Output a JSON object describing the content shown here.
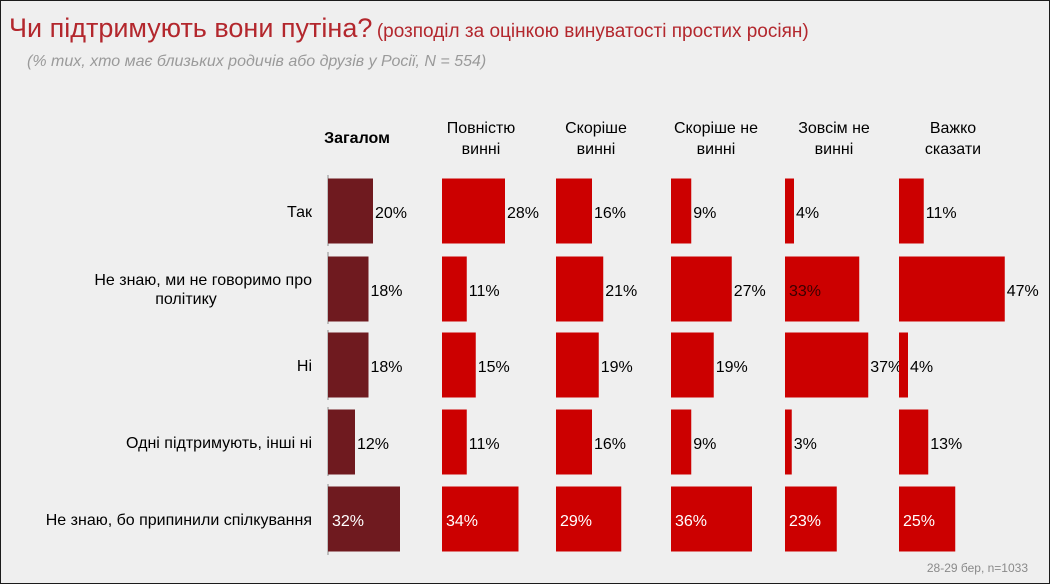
{
  "title": {
    "main": "Чи підтримують вони путіна?",
    "sub": "(розподіл за оцінкою винуватості простих росіян)"
  },
  "subtitle": "(% тих, хто має близьких родичів або друзів у Росії, N = 554)",
  "footnote": "28-29 бер, n=1033",
  "colors": {
    "overall": "#6f1a1f",
    "group": "#cc0000",
    "text": "#000000",
    "title": "#b3272d"
  },
  "chart_data": {
    "type": "bar",
    "orientation": "horizontal",
    "title": "Чи підтримують вони путіна?",
    "categories": [
      [
        "Так"
      ],
      [
        "Не знаю, ми не говоримо про",
        "політику"
      ],
      [
        "Ні"
      ],
      [
        "Одні підтримують, інші ні"
      ],
      [
        "Не знаю, бо припинили спілкування"
      ]
    ],
    "series": [
      {
        "name": [
          "Загалом"
        ],
        "values": [
          20,
          18,
          18,
          12,
          32
        ]
      },
      {
        "name": [
          "Повністю",
          "винні"
        ],
        "values": [
          28,
          11,
          15,
          11,
          34
        ]
      },
      {
        "name": [
          "Скоріше",
          "винні"
        ],
        "values": [
          16,
          21,
          19,
          16,
          29
        ]
      },
      {
        "name": [
          "Скоріше не",
          "винні"
        ],
        "values": [
          9,
          27,
          19,
          9,
          36
        ]
      },
      {
        "name": [
          "Зовсім не",
          "винні"
        ],
        "values": [
          4,
          33,
          37,
          3,
          23
        ]
      },
      {
        "name": [
          "Важко",
          "сказати"
        ],
        "values": [
          11,
          47,
          4,
          13,
          25
        ]
      }
    ],
    "unit": "%",
    "xlim": [
      0,
      47
    ]
  }
}
